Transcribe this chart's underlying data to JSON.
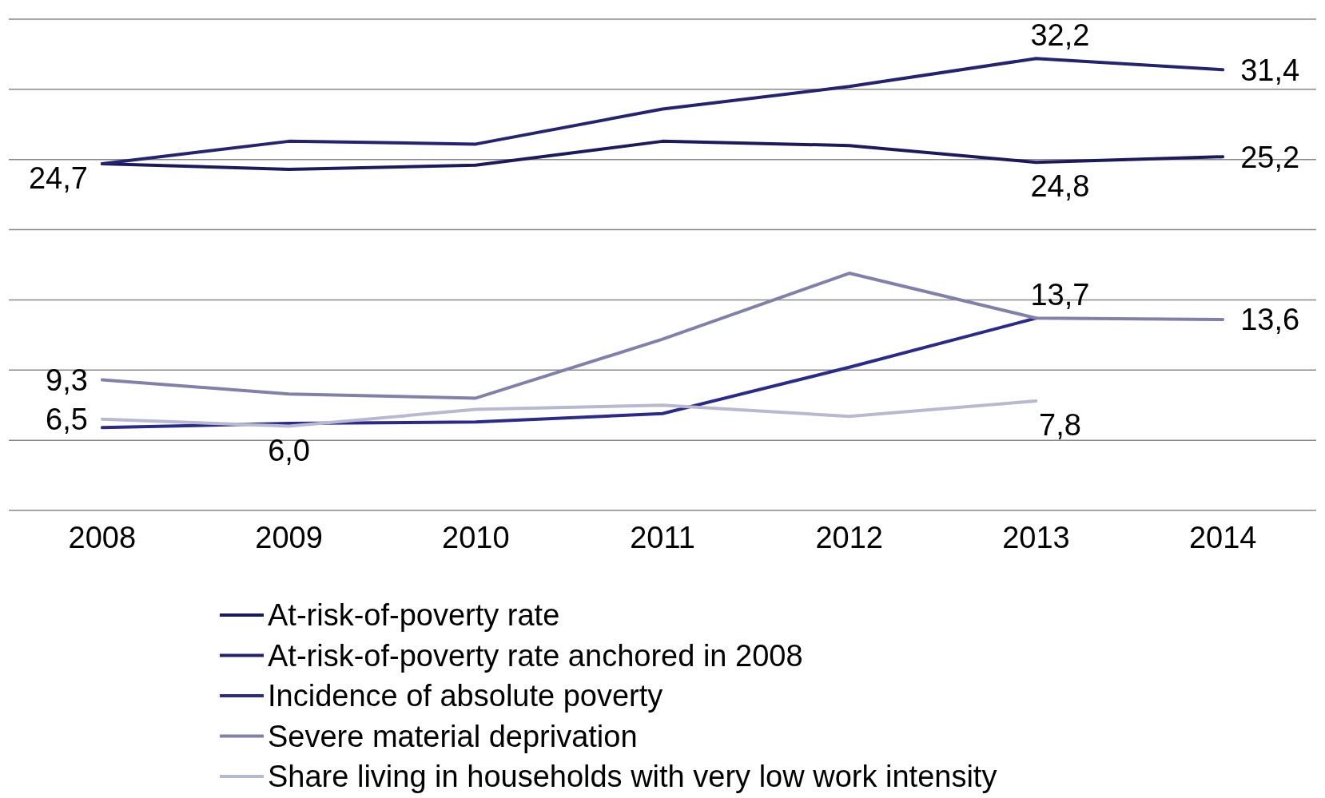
{
  "chart_data": {
    "type": "line",
    "categories": [
      "2008",
      "2009",
      "2010",
      "2011",
      "2012",
      "2013",
      "2014"
    ],
    "ylim": [
      0,
      35
    ],
    "yticks": [
      {
        "value": 0,
        "label": null
      },
      {
        "value": 5,
        "label": null
      },
      {
        "value": 10,
        "label": null
      },
      {
        "value": 15,
        "label": null
      },
      {
        "value": 20,
        "label": null
      },
      {
        "value": 25,
        "label": null
      },
      {
        "value": 30,
        "label": null
      },
      {
        "value": 35,
        "label": null
      }
    ],
    "grid": "y",
    "legend": "bottom",
    "marker": "none",
    "line_style": "solid",
    "tick_labels": "x",
    "series": [
      {
        "name": "At-risk-of-poverty rate",
        "color": "#1c1a5e",
        "values": [
          24.7,
          24.3,
          24.6,
          26.3,
          26.0,
          24.8,
          25.2
        ],
        "value_labels": [
          null,
          null,
          null,
          null,
          null,
          "24,8",
          "25,2"
        ]
      },
      {
        "name": "At-risk-of-poverty rate anchored in 2008",
        "color": "#232372",
        "values": [
          24.7,
          26.3,
          26.1,
          28.6,
          30.2,
          32.2,
          31.4
        ],
        "value_labels": [
          "24,7",
          null,
          null,
          null,
          null,
          "32,2",
          "31,4"
        ]
      },
      {
        "name": "Incidence of absolute poverty",
        "color": "#2a2a8c",
        "values": [
          5.9,
          6.2,
          6.3,
          6.9,
          10.2,
          13.7,
          null
        ],
        "value_labels": [
          null,
          null,
          null,
          null,
          null,
          "13,7",
          null
        ]
      },
      {
        "name": "Severe material deprivation",
        "color": "#8080aa",
        "values": [
          9.3,
          8.3,
          8.0,
          12.2,
          16.9,
          13.7,
          13.6
        ],
        "value_labels": [
          "9,3",
          null,
          null,
          null,
          null,
          null,
          "13,6"
        ]
      },
      {
        "name": "Share living in households with very low work intensity",
        "color": "#b8b8d0",
        "values": [
          6.5,
          6.0,
          7.2,
          7.5,
          6.7,
          7.8,
          null
        ],
        "value_labels": [
          "6,5",
          "6,0",
          null,
          null,
          null,
          "7,8",
          null
        ]
      }
    ]
  }
}
